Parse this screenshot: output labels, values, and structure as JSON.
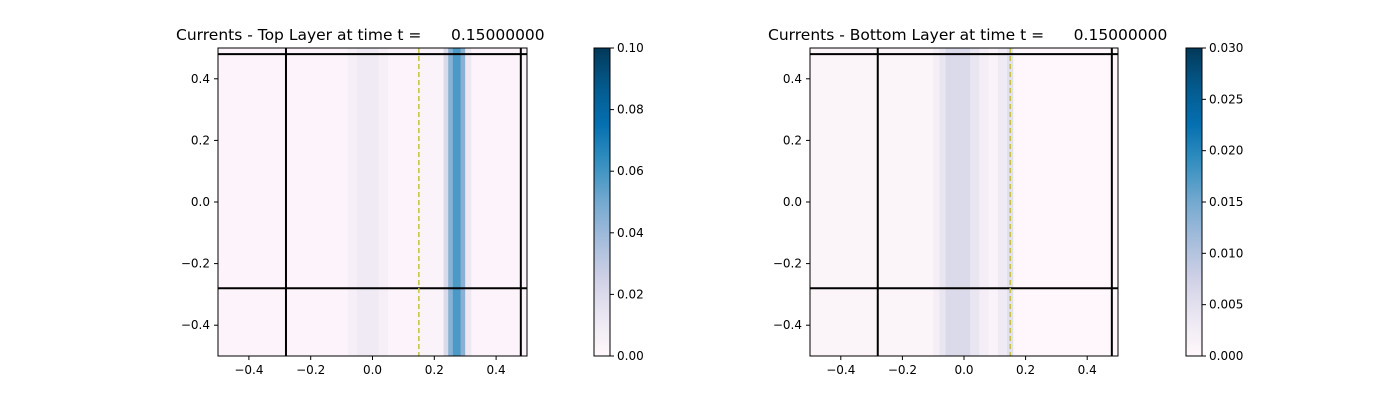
{
  "chart_data": [
    {
      "type": "heatmap",
      "title": "Currents - Top Layer at time t =      0.15000000",
      "xlim": [
        -0.5,
        0.5
      ],
      "ylim": [
        -0.5,
        0.5
      ],
      "x_ticks": [
        "−0.4",
        "−0.2",
        "0.0",
        "0.2",
        "0.4"
      ],
      "y_ticks": [
        "−0.4",
        "−0.2",
        "0.0",
        "0.2",
        "0.4"
      ],
      "colorbar": {
        "min": 0.0,
        "max": 0.1,
        "ticks": [
          "0.00",
          "0.02",
          "0.04",
          "0.06",
          "0.08",
          "0.10"
        ],
        "colormap": "PuBu"
      },
      "field_columns": [
        {
          "x0": -0.5,
          "x1": -0.08,
          "value": 0.002
        },
        {
          "x0": -0.08,
          "x1": -0.05,
          "value": 0.006
        },
        {
          "x0": -0.05,
          "x1": 0.02,
          "value": 0.01
        },
        {
          "x0": 0.02,
          "x1": 0.05,
          "value": 0.006
        },
        {
          "x0": 0.05,
          "x1": 0.14,
          "value": 0.002
        },
        {
          "x0": 0.14,
          "x1": 0.23,
          "value": 0.003
        },
        {
          "x0": 0.23,
          "x1": 0.245,
          "value": 0.02
        },
        {
          "x0": 0.245,
          "x1": 0.26,
          "value": 0.045
        },
        {
          "x0": 0.26,
          "x1": 0.285,
          "value": 0.058
        },
        {
          "x0": 0.285,
          "x1": 0.3,
          "value": 0.045
        },
        {
          "x0": 0.3,
          "x1": 0.32,
          "value": 0.012
        },
        {
          "x0": 0.32,
          "x1": 0.5,
          "value": 0.002
        }
      ],
      "lines": {
        "vertical": [
          -0.28,
          0.48
        ],
        "horizontal": [
          -0.28,
          0.48
        ],
        "dashed_vertical": 0.15,
        "dashed_color": "#c8bf3a",
        "line_color": "#000000"
      }
    },
    {
      "type": "heatmap",
      "title": "Currents - Bottom Layer at time t =      0.15000000",
      "xlim": [
        -0.5,
        0.5
      ],
      "ylim": [
        -0.5,
        0.5
      ],
      "x_ticks": [
        "−0.4",
        "−0.2",
        "0.0",
        "0.2",
        "0.4"
      ],
      "y_ticks": [
        "−0.4",
        "−0.2",
        "0.0",
        "0.2",
        "0.4"
      ],
      "colorbar": {
        "min": 0.0,
        "max": 0.03,
        "ticks": [
          "0.000",
          "0.005",
          "0.010",
          "0.015",
          "0.020",
          "0.025",
          "0.030"
        ],
        "colormap": "PuBu"
      },
      "field_columns": [
        {
          "x0": -0.5,
          "x1": -0.1,
          "value": 0.0008
        },
        {
          "x0": -0.1,
          "x1": -0.08,
          "value": 0.002
        },
        {
          "x0": -0.08,
          "x1": -0.06,
          "value": 0.004
        },
        {
          "x0": -0.06,
          "x1": 0.02,
          "value": 0.006
        },
        {
          "x0": 0.02,
          "x1": 0.05,
          "value": 0.004
        },
        {
          "x0": 0.05,
          "x1": 0.08,
          "value": 0.002
        },
        {
          "x0": 0.08,
          "x1": 0.11,
          "value": 0.001
        },
        {
          "x0": 0.11,
          "x1": 0.14,
          "value": 0.003
        },
        {
          "x0": 0.14,
          "x1": 0.16,
          "value": 0.005
        },
        {
          "x0": 0.16,
          "x1": 0.5,
          "value": 0.0
        }
      ],
      "lines": {
        "vertical": [
          -0.28,
          0.48
        ],
        "horizontal": [
          -0.28,
          0.48
        ],
        "dashed_vertical": 0.15,
        "dashed_color": "#c8bf3a",
        "line_color": "#000000"
      }
    }
  ]
}
